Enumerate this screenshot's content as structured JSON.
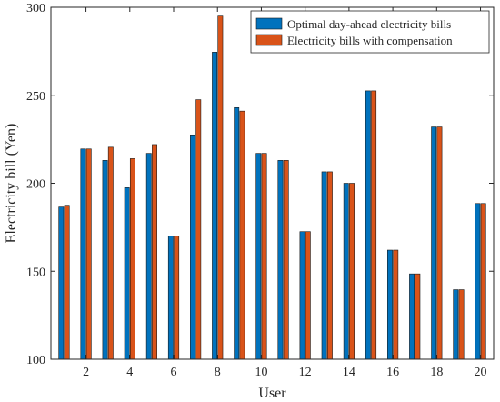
{
  "chart_data": {
    "type": "bar",
    "xlabel": "User",
    "ylabel": "Electricity bill (Yen)",
    "ylim": [
      100,
      300
    ],
    "yticks": [
      100,
      150,
      200,
      250,
      300
    ],
    "xticks": [
      2,
      4,
      6,
      8,
      10,
      12,
      14,
      16,
      18,
      20
    ],
    "categories": [
      1,
      2,
      3,
      4,
      5,
      6,
      7,
      8,
      9,
      10,
      11,
      12,
      13,
      14,
      15,
      16,
      17,
      18,
      19,
      20
    ],
    "grid": false,
    "legend_position": "top-right",
    "series": [
      {
        "name": "Optimal day-ahead electricity bills",
        "color": "#0072BD",
        "values": [
          186.5,
          219.5,
          213,
          197.5,
          217,
          170,
          227.5,
          274.5,
          243,
          217,
          213,
          172.5,
          206.5,
          200,
          252.5,
          162,
          148.5,
          232,
          139.5,
          188.5
        ]
      },
      {
        "name": "Electricity bills with compensation",
        "color": "#D95319",
        "values": [
          187.5,
          219.5,
          220.5,
          214,
          222,
          170,
          247.5,
          295,
          241,
          217,
          213,
          172.5,
          206.5,
          200,
          252.5,
          162,
          148.5,
          232,
          139.5,
          188.5
        ]
      }
    ]
  }
}
